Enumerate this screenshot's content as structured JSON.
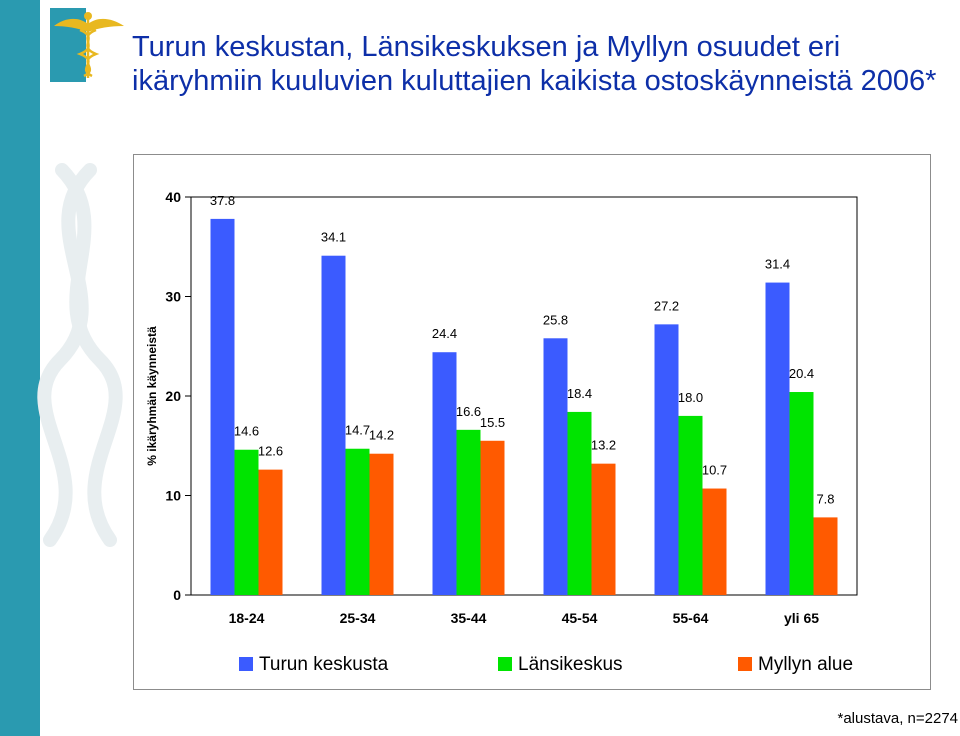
{
  "title": {
    "line1": "Turun keskustan, Länsikeskuksen ja Myllyn osuudet eri",
    "line2": "ikäryhmiin kuuluvien kuluttajien kaikista ostoskäynneistä 2006*"
  },
  "footnote": "*alustava, n=2274",
  "logo": {
    "icon": "caduceus-icon"
  },
  "chart_data": {
    "type": "bar",
    "categories": [
      "18-24",
      "25-34",
      "35-44",
      "45-54",
      "55-64",
      "yli 65"
    ],
    "series": [
      {
        "name": "Turun keskusta",
        "color": "#3b5bff",
        "values": [
          37.8,
          34.1,
          24.4,
          25.8,
          27.2,
          31.4
        ]
      },
      {
        "name": "Länsikeskus",
        "color": "#00e400",
        "values": [
          14.6,
          14.7,
          16.6,
          18.4,
          18.0,
          20.4
        ]
      },
      {
        "name": "Myllyn alue",
        "color": "#ff5a00",
        "values": [
          12.6,
          14.2,
          15.5,
          13.2,
          10.7,
          7.8
        ]
      }
    ],
    "value_labels": [
      [
        "37.8",
        "34.1",
        "24.4",
        "25.8",
        "27.2",
        "31.4"
      ],
      [
        "14.6",
        "14.7",
        "16.6",
        "18.4",
        "18.0",
        "20.4"
      ],
      [
        "12.6",
        "14.2",
        "15.5",
        "13.2",
        "10.7",
        "7.8"
      ]
    ],
    "yticks": [
      0,
      10,
      20,
      30,
      40
    ],
    "ytick_labels": [
      "0",
      "10",
      "20",
      "30",
      "40"
    ],
    "ylim": [
      0,
      40
    ],
    "ylabel": "% ikäryhmän käynneistä",
    "xlabel": "",
    "grid": false,
    "legend_position": "bottom"
  }
}
